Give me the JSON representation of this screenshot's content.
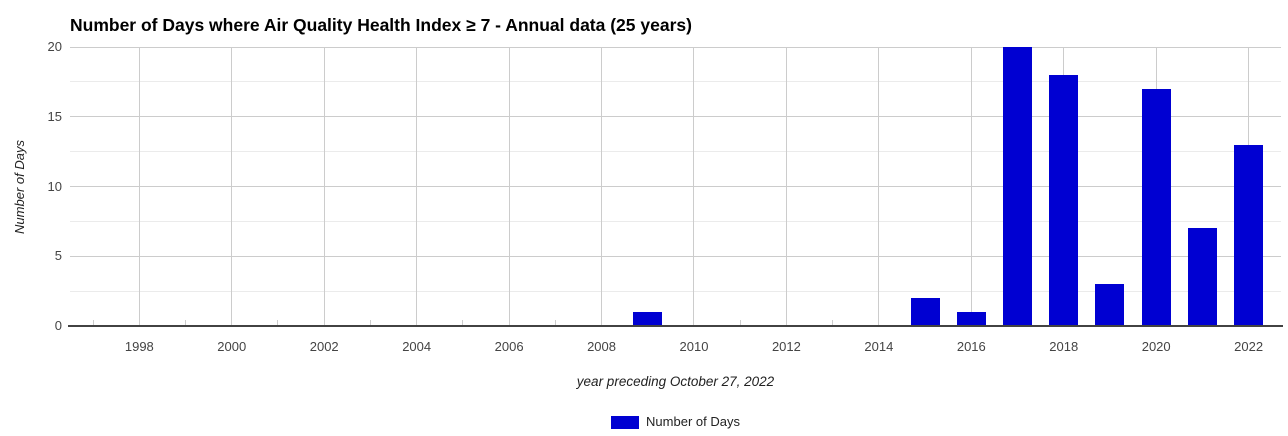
{
  "chart_data": {
    "type": "bar",
    "title": "Number of Days where Air Quality Health Index ≥ 7 - Annual data (25 years)",
    "xlabel": "year preceding October 27, 2022",
    "ylabel": "Number of Days",
    "legend": {
      "position": "bottom",
      "label": "Number of Days"
    },
    "categories": [
      "1998",
      "1999",
      "2000",
      "2001",
      "2002",
      "2003",
      "2004",
      "2005",
      "2006",
      "2007",
      "2008",
      "2009",
      "2010",
      "2011",
      "2012",
      "2013",
      "2014",
      "2015",
      "2016",
      "2017",
      "2018",
      "2019",
      "2020",
      "2021",
      "2022"
    ],
    "values": [
      0,
      0,
      0,
      0,
      0,
      0,
      0,
      0,
      0,
      0,
      0,
      1,
      0,
      0,
      0,
      0,
      0,
      2,
      1,
      20,
      18,
      3,
      17,
      7,
      13
    ],
    "x_axis": {
      "labeled_ticks": [
        1998,
        2000,
        2002,
        2004,
        2006,
        2008,
        2010,
        2012,
        2014,
        2016,
        2018,
        2020,
        2022
      ],
      "minor_ticks": [
        1997,
        1999,
        2001,
        2003,
        2005,
        2007,
        2009,
        2011,
        2013,
        2015,
        2017,
        2019,
        2021
      ],
      "range": [
        1996.5,
        2022.7
      ],
      "gridlines": "on-labeled-ticks"
    },
    "y_axis": {
      "ticks": [
        0,
        5,
        10,
        15,
        20
      ],
      "minor_gridlines": [
        2.5,
        7.5,
        12.5,
        17.5
      ],
      "range": [
        0,
        20
      ]
    },
    "colors": {
      "bar": "#0000d2",
      "major_grid": "#cccccc",
      "minor_grid": "#ebebeb",
      "baseline": "#424242",
      "tick_label": "#444444",
      "axis_title": "#222222",
      "title": "#000000"
    },
    "grid": true
  }
}
